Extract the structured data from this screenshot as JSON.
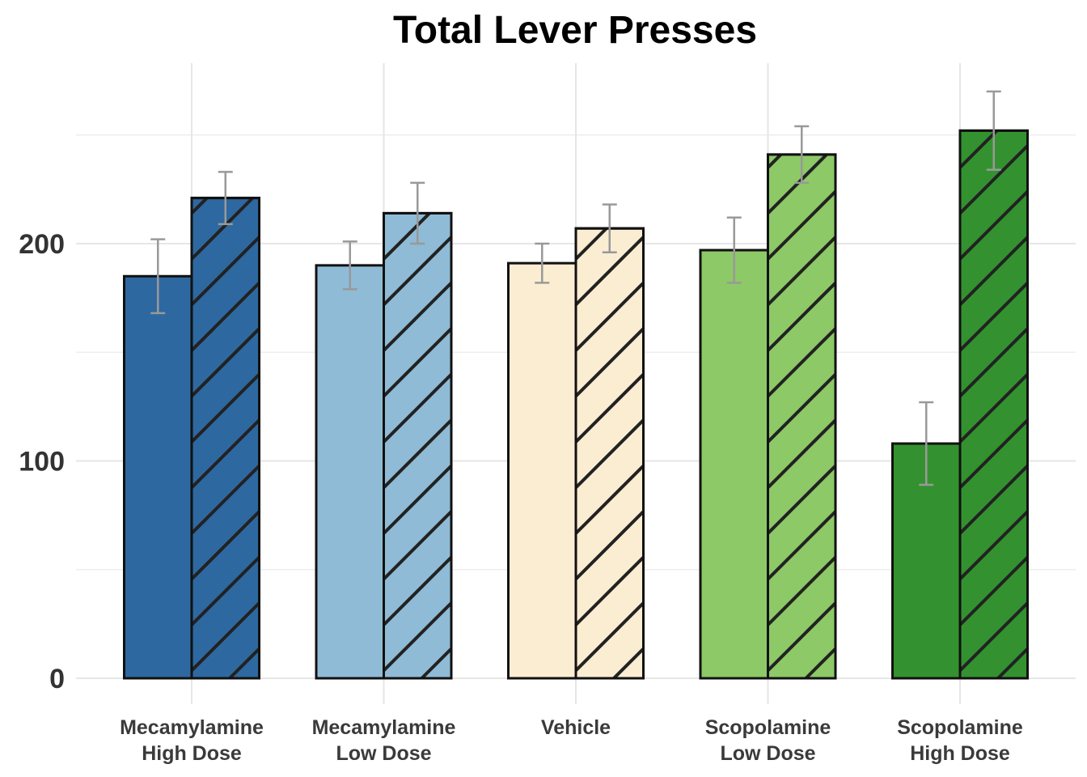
{
  "chart_data": {
    "type": "bar",
    "title": "Total Lever Presses",
    "xlabel": "",
    "ylabel": "",
    "ylim": [
      -10,
      288
    ],
    "yticks": [
      0,
      100,
      200
    ],
    "grid": true,
    "legend": "none",
    "categories": [
      [
        "Mecamylamine",
        "High Dose"
      ],
      [
        "Mecamylamine",
        "Low Dose"
      ],
      [
        "Vehicle"
      ],
      [
        "Scopolamine",
        "Low Dose"
      ],
      [
        "Scopolamine",
        "High Dose"
      ]
    ],
    "colors": [
      "#2e68a0",
      "#8fbbd6",
      "#faedd2",
      "#8dc967",
      "#33922f"
    ],
    "series": [
      {
        "pattern": "solid",
        "values": [
          185,
          190,
          191,
          197,
          108
        ],
        "error": [
          17,
          11,
          9,
          15,
          19
        ]
      },
      {
        "pattern": "hatched",
        "values": [
          221,
          214,
          207,
          241,
          252
        ],
        "error": [
          12,
          14,
          11,
          13,
          18
        ]
      }
    ]
  }
}
